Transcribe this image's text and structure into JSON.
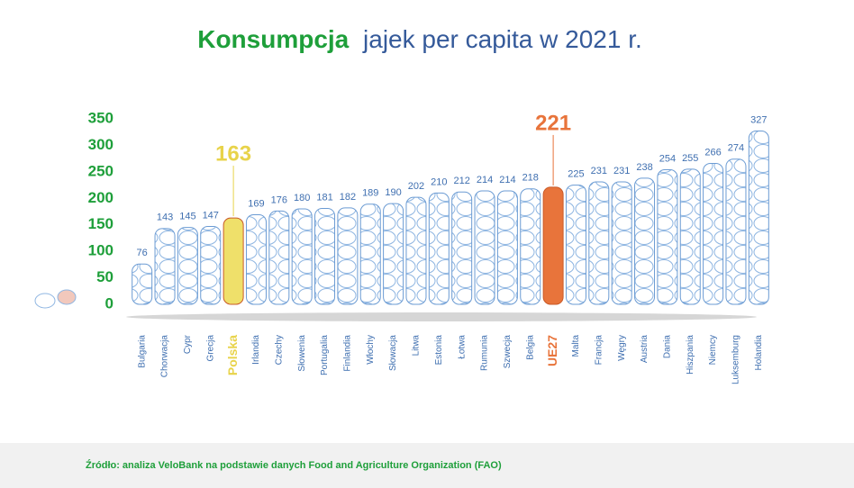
{
  "chart_data": {
    "type": "bar",
    "title": {
      "highlight": "Konsumpcja",
      "rest": "jajek per capita w 2021 r."
    },
    "categories": [
      "Bulgaria",
      "Chorwacja",
      "Cypr",
      "Grecja",
      "Polska",
      "Irlandia",
      "Czechy",
      "Słowenia",
      "Portugalia",
      "Finlandia",
      "Włochy",
      "Słowacja",
      "Litwa",
      "Estonia",
      "Łotwa",
      "Rumunia",
      "Szwecja",
      "Belgia",
      "UE27",
      "Malta",
      "Francja",
      "Węgry",
      "Austria",
      "Dania",
      "Hiszpania",
      "Niemcy",
      "Luksemburg",
      "Holandia"
    ],
    "values": [
      76,
      143,
      145,
      147,
      163,
      169,
      176,
      180,
      181,
      182,
      189,
      190,
      202,
      210,
      212,
      214,
      214,
      218,
      221,
      225,
      231,
      231,
      238,
      254,
      255,
      266,
      274,
      327
    ],
    "color": "#ffffff",
    "colors": [
      "#ffffff",
      "#ffffff",
      "#ffffff",
      "#ffffff",
      "#efe06a",
      "#ffffff",
      "#ffffff",
      "#ffffff",
      "#ffffff",
      "#ffffff",
      "#ffffff",
      "#ffffff",
      "#ffffff",
      "#ffffff",
      "#ffffff",
      "#ffffff",
      "#ffffff",
      "#ffffff",
      "#e8743b",
      "#ffffff",
      "#ffffff",
      "#ffffff",
      "#ffffff",
      "#ffffff",
      "#ffffff",
      "#ffffff",
      "#ffffff",
      "#ffffff"
    ],
    "ylim": [
      0,
      350
    ],
    "yticks": [
      0,
      50,
      100,
      150,
      200,
      250,
      300,
      350
    ],
    "grid": false,
    "source": "Źródło: analiza VeloBank na podstawie danych Food and Agriculture Organization (FAO)"
  }
}
